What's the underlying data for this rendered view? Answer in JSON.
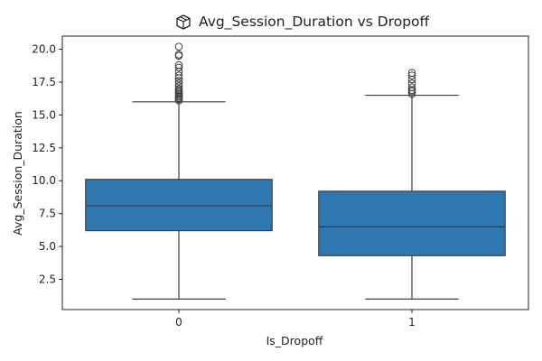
{
  "chart_data": {
    "type": "boxplot",
    "title": "Avg_Session_Duration vs Dropoff",
    "title_icon": "package-box-icon",
    "xlabel": "Is_Dropoff",
    "ylabel": "Avg_Session_Duration",
    "ylim": [
      0.2,
      21.0
    ],
    "yticks": [
      2.5,
      5.0,
      7.5,
      10.0,
      12.5,
      15.0,
      17.5,
      20.0
    ],
    "ytick_labels": [
      "2.5",
      "5.0",
      "7.5",
      "10.0",
      "12.5",
      "15.0",
      "17.5",
      "20.0"
    ],
    "grid": false,
    "legend": "none",
    "categories": [
      "0",
      "1"
    ],
    "box_color": "#2f77b1",
    "edge_color": "#3d3d3d",
    "boxes": [
      {
        "category": "0",
        "whisker_low": 1.0,
        "q1": 6.2,
        "median": 8.1,
        "q3": 10.1,
        "whisker_high": 16.0,
        "outliers": [
          16.1,
          16.2,
          16.3,
          16.4,
          16.5,
          16.6,
          16.7,
          16.8,
          16.9,
          17.0,
          17.2,
          17.4,
          17.6,
          17.8,
          18.0,
          18.3,
          18.6,
          18.8,
          19.5,
          19.6,
          20.2
        ]
      },
      {
        "category": "1",
        "whisker_low": 1.0,
        "q1": 4.3,
        "median": 6.5,
        "q3": 9.2,
        "whisker_high": 16.5,
        "outliers": [
          16.6,
          16.8,
          16.9,
          17.1,
          17.4,
          17.7,
          18.0,
          18.2
        ]
      }
    ]
  }
}
